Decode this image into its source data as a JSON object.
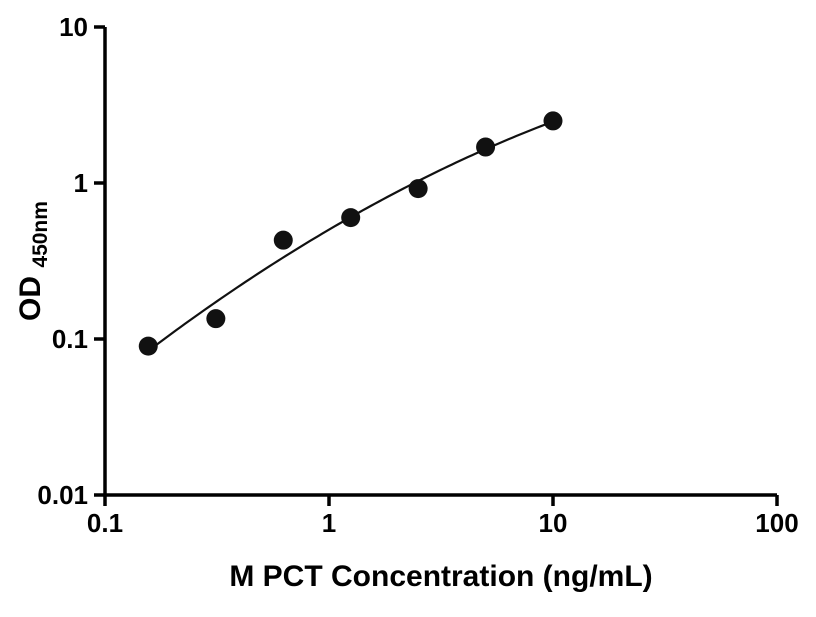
{
  "chart_data": {
    "type": "scatter",
    "title": "",
    "xlabel": "M PCT Concentration (ng/mL)",
    "ylabel_main": "OD",
    "ylabel_sub": "450nm",
    "x": [
      0.156,
      0.3125,
      0.625,
      1.25,
      2.5,
      5,
      10
    ],
    "y": [
      0.09,
      0.135,
      0.43,
      0.6,
      0.92,
      1.7,
      2.5
    ],
    "fit": "quadratic-loglog-curve-through-points",
    "x_scale": "log",
    "y_scale": "log",
    "xlim": [
      0.1,
      100
    ],
    "ylim": [
      0.01,
      10
    ],
    "x_ticks": [
      0.1,
      1,
      10,
      100
    ],
    "x_tick_labels": [
      "0.1",
      "1",
      "10",
      "100"
    ],
    "y_ticks": [
      0.01,
      0.1,
      1,
      10
    ],
    "y_tick_labels": [
      "0.01",
      "0.1",
      "1",
      "10"
    ],
    "grid": "off",
    "legend": "none",
    "marker_color": "#111111",
    "line_color": "#111111",
    "axis_color": "#000000",
    "background": "#ffffff"
  }
}
